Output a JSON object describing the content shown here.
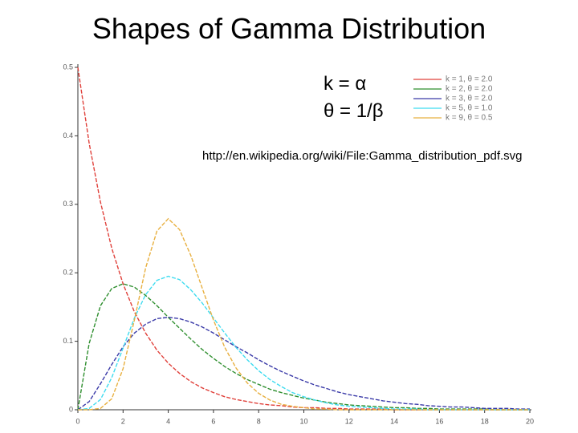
{
  "chart_data": {
    "type": "line",
    "title": "Shapes of Gamma Distribution",
    "annotations": [
      "k = α",
      "θ = 1/β",
      "http://en.wikipedia.org/wiki/File:Gamma_distribution_pdf.svg"
    ],
    "x": [
      0,
      0.5,
      1,
      1.5,
      2,
      2.5,
      3,
      3.5,
      4,
      4.5,
      5,
      5.5,
      6,
      6.5,
      7,
      7.5,
      8,
      8.5,
      9,
      9.5,
      10,
      10.5,
      11,
      11.5,
      12,
      12.5,
      13,
      13.5,
      14,
      14.5,
      15,
      15.5,
      16,
      16.5,
      17,
      17.5,
      18,
      18.5,
      19,
      19.5,
      20
    ],
    "series": [
      {
        "name": "k = 1, θ = 2.0",
        "color": "#e0403a",
        "values": [
          0.5,
          0.389,
          0.303,
          0.236,
          0.184,
          0.143,
          0.112,
          0.087,
          0.068,
          0.053,
          0.041,
          0.032,
          0.025,
          0.019,
          0.015,
          0.012,
          0.009,
          0.007,
          0.006,
          0.004,
          0.003,
          0.003,
          0.002,
          0.002,
          0.001,
          0.001,
          0.001,
          0.001,
          0,
          0,
          0,
          0,
          0,
          0,
          0,
          0,
          0,
          0,
          0,
          0,
          0
        ]
      },
      {
        "name": "k = 2, θ = 2.0",
        "color": "#2f8f2f",
        "values": [
          0,
          0.097,
          0.152,
          0.177,
          0.184,
          0.179,
          0.167,
          0.152,
          0.135,
          0.119,
          0.103,
          0.088,
          0.075,
          0.063,
          0.053,
          0.044,
          0.037,
          0.03,
          0.025,
          0.021,
          0.017,
          0.014,
          0.011,
          0.009,
          0.007,
          0.006,
          0.005,
          0.004,
          0.003,
          0.003,
          0.002,
          0.002,
          0.001,
          0.001,
          0.001,
          0.001,
          0.001,
          0,
          0,
          0,
          0
        ]
      },
      {
        "name": "k = 3, θ = 2.0",
        "color": "#3a3aa8",
        "values": [
          0,
          0.012,
          0.038,
          0.066,
          0.092,
          0.112,
          0.125,
          0.133,
          0.135,
          0.133,
          0.128,
          0.121,
          0.112,
          0.102,
          0.092,
          0.083,
          0.073,
          0.064,
          0.056,
          0.049,
          0.042,
          0.036,
          0.031,
          0.026,
          0.022,
          0.019,
          0.016,
          0.013,
          0.011,
          0.009,
          0.008,
          0.006,
          0.005,
          0.004,
          0.004,
          0.003,
          0.002,
          0.002,
          0.002,
          0.001,
          0.001
        ]
      },
      {
        "name": "k = 5, θ = 1.0",
        "color": "#3fdcf0",
        "values": [
          0,
          0.002,
          0.015,
          0.047,
          0.09,
          0.134,
          0.168,
          0.189,
          0.195,
          0.19,
          0.175,
          0.156,
          0.134,
          0.112,
          0.091,
          0.073,
          0.057,
          0.044,
          0.034,
          0.025,
          0.019,
          0.014,
          0.01,
          0.007,
          0.005,
          0.004,
          0.003,
          0.002,
          0.001,
          0.001,
          0.001,
          0,
          0,
          0,
          0,
          0,
          0,
          0,
          0,
          0,
          0
        ]
      },
      {
        "name": "k = 9, θ = 0.5",
        "color": "#e8b040",
        "values": [
          0,
          0,
          0.002,
          0.016,
          0.06,
          0.131,
          0.207,
          0.261,
          0.279,
          0.263,
          0.225,
          0.178,
          0.131,
          0.091,
          0.061,
          0.039,
          0.024,
          0.014,
          0.008,
          0.005,
          0.003,
          0.001,
          0.001,
          0,
          0,
          0,
          0,
          0,
          0,
          0,
          0,
          0,
          0,
          0,
          0,
          0,
          0,
          0,
          0,
          0,
          0
        ]
      }
    ],
    "xlim": [
      0,
      20
    ],
    "xticks": [
      0,
      2,
      4,
      6,
      8,
      10,
      12,
      14,
      16,
      18,
      20
    ],
    "ylim": [
      0,
      0.5
    ],
    "yticks": [
      0,
      0.1,
      0.2,
      0.3,
      0.4,
      0.5
    ]
  }
}
